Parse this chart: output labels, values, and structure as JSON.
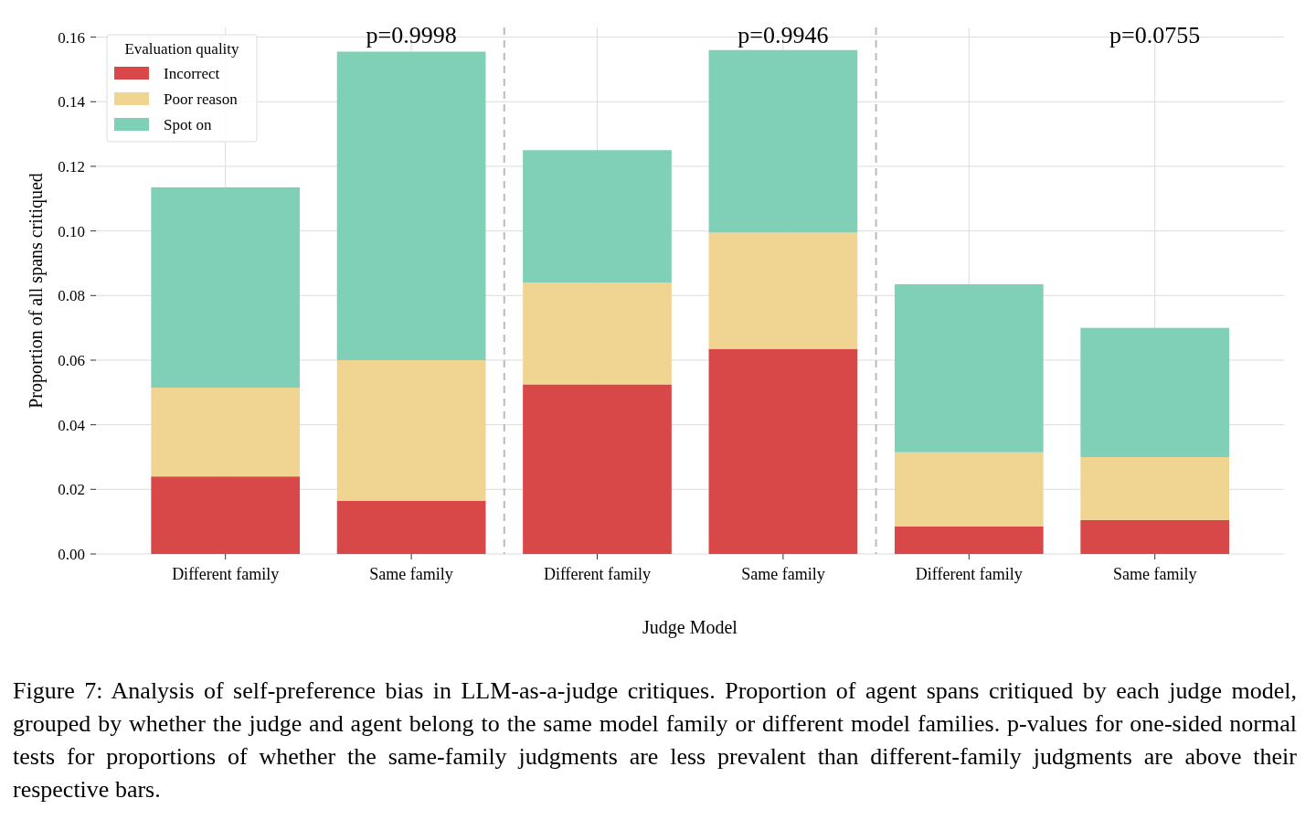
{
  "chart_data": {
    "type": "bar",
    "stacked": true,
    "categories": [
      "Different family",
      "Same family",
      "Different family",
      "Same family",
      "Different family",
      "Same family"
    ],
    "series": [
      {
        "name": "Incorrect",
        "color": "#d94848",
        "values": [
          0.024,
          0.0165,
          0.0525,
          0.0635,
          0.0085,
          0.0105
        ]
      },
      {
        "name": "Poor reason",
        "color": "#f0d492",
        "values": [
          0.0275,
          0.0435,
          0.0315,
          0.036,
          0.023,
          0.0195
        ]
      },
      {
        "name": "Spot on",
        "color": "#7fd0b6",
        "values": [
          0.062,
          0.0955,
          0.041,
          0.0565,
          0.052,
          0.04
        ]
      }
    ],
    "ylim": [
      0,
      0.163
    ],
    "yticks": [
      {
        "value": 0,
        "label": "0.00"
      },
      {
        "value": 0.02,
        "label": "0.02"
      },
      {
        "value": 0.04,
        "label": "0.04"
      },
      {
        "value": 0.06,
        "label": "0.06"
      },
      {
        "value": 0.08,
        "label": "0.08"
      },
      {
        "value": 0.1,
        "label": "0.10"
      },
      {
        "value": 0.12,
        "label": "0.12"
      },
      {
        "value": 0.14,
        "label": "0.14"
      },
      {
        "value": 0.16,
        "label": "0.16"
      }
    ],
    "ylabel": "Proportion of all spans critiqued",
    "xlabel": "Judge Model",
    "legend_title": "Evaluation quality",
    "legend": "top left",
    "grid": true,
    "annotations": [
      "p=0.9998",
      "p=0.9946",
      "p=0.0755",
      "Figure 7: Analysis of self-preference bias in LLM-as-a-judge critiques. Proportion of agent spans critiqued by each judge model, grouped by whether the judge and agent belong to the same model family or different model families. p-values for one-sided normal tests for proportions of whether the same-family judgments are less prevalent than different-family judgments are above their respective bars."
    ]
  }
}
